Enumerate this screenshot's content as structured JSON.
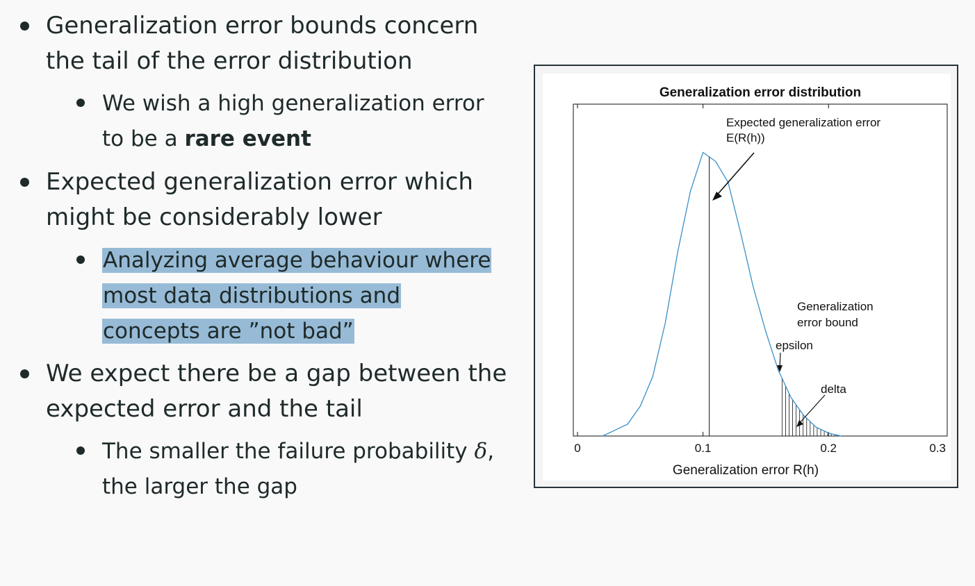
{
  "bullets": [
    {
      "lines": [
        "Generalization error bounds concern",
        "the tail of the error distribution"
      ],
      "sub": {
        "line1": "We wish a high generalization error",
        "line2_prefix": "to be a ",
        "line2_bold": "rare event"
      }
    },
    {
      "lines": [
        "Expected generalization error which",
        "might be considerably lower"
      ],
      "sub": {
        "lines": [
          "Analyzing average behaviour where",
          "most data distributions and",
          "concepts are ”not bad”"
        ]
      }
    },
    {
      "lines": [
        "We expect there be a gap between the",
        "expected error and the tail"
      ],
      "sub": {
        "line1_prefix": "The smaller the failure probability ",
        "line1_math": "δ",
        "line1_suffix": ",",
        "line2": "the larger the gap"
      }
    }
  ],
  "figure": {
    "title": "Generalization error distribution",
    "xlabel": "Generalization error R(h)",
    "annotations": {
      "expected_line1": "Expected generalization error",
      "expected_line2": "E(R(h))",
      "bound_line1": "Generalization",
      "bound_line2": "error bound",
      "epsilon": "epsilon",
      "delta": "delta"
    },
    "colors": {
      "curve": "#3a8fc8",
      "axes": "#111111"
    }
  },
  "chart_data": {
    "type": "line",
    "title": "Generalization error distribution",
    "xlabel": "Generalization error R(h)",
    "ylabel": "",
    "xticks": [
      "0",
      "0.1",
      "0.2",
      "0.3"
    ],
    "xlim": [
      0,
      0.3
    ],
    "series": [
      {
        "x": [
          0.02,
          0.03,
          0.04,
          0.05,
          0.06,
          0.07,
          0.08,
          0.09,
          0.1,
          0.11,
          0.12,
          0.13,
          0.14,
          0.15,
          0.16,
          0.17,
          0.18,
          0.19,
          0.2,
          0.21
        ],
        "values": [
          0.0,
          0.02,
          0.04,
          0.1,
          0.2,
          0.38,
          0.62,
          0.82,
          0.95,
          0.92,
          0.85,
          0.68,
          0.5,
          0.35,
          0.22,
          0.13,
          0.07,
          0.03,
          0.01,
          0.0
        ]
      }
    ],
    "markers": {
      "expected_error": 0.105,
      "epsilon": 0.163
    }
  }
}
